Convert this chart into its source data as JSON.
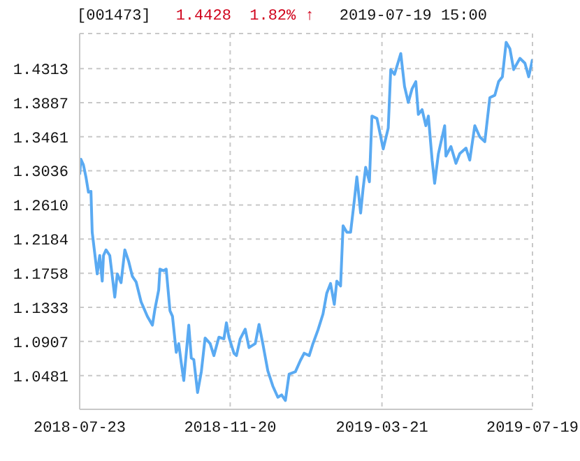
{
  "chart_data": {
    "type": "line",
    "title": "[001473]",
    "subtitle": "1.4428  1.82% ↑",
    "annotations": [
      "2019-07-19 15:00"
    ],
    "x": [
      "2018-07-23",
      "2018-07-24",
      "2018-07-26",
      "2018-07-28",
      "2018-07-30",
      "2018-08-01",
      "2018-08-02",
      "2018-08-06",
      "2018-08-08",
      "2018-08-10",
      "2018-08-11",
      "2018-08-13",
      "2018-08-16",
      "2018-08-20",
      "2018-08-22",
      "2018-08-25",
      "2018-08-28",
      "2018-08-31",
      "2018-09-03",
      "2018-09-06",
      "2018-09-10",
      "2018-09-15",
      "2018-09-19",
      "2018-09-21",
      "2018-09-24",
      "2018-09-25",
      "2018-09-28",
      "2018-09-30",
      "2018-10-03",
      "2018-10-05",
      "2018-10-08",
      "2018-10-10",
      "2018-10-12",
      "2018-10-14",
      "2018-10-18",
      "2018-10-20",
      "2018-10-22",
      "2018-10-25",
      "2018-10-28",
      "2018-10-31",
      "2018-11-04",
      "2018-11-07",
      "2018-11-11",
      "2018-11-15",
      "2018-11-17",
      "2018-11-19",
      "2018-11-23",
      "2018-11-25",
      "2018-11-28",
      "2018-12-02",
      "2018-12-05",
      "2018-12-10",
      "2018-12-13",
      "2018-12-16",
      "2018-12-20",
      "2018-12-24",
      "2018-12-28",
      "2018-12-31",
      "2019-01-03",
      "2019-01-06",
      "2019-01-11",
      "2019-01-15",
      "2019-01-18",
      "2019-01-22",
      "2019-01-25",
      "2019-01-29",
      "2019-02-02",
      "2019-02-05",
      "2019-02-08",
      "2019-02-11",
      "2019-02-13",
      "2019-02-16",
      "2019-02-18",
      "2019-02-21",
      "2019-02-24",
      "2019-02-27",
      "2019-03-01",
      "2019-03-04",
      "2019-03-06",
      "2019-03-08",
      "2019-03-11",
      "2019-03-13",
      "2019-03-17",
      "2019-03-22",
      "2019-03-26",
      "2019-03-28",
      "2019-03-31",
      "2019-04-05",
      "2019-04-08",
      "2019-04-11",
      "2019-04-14",
      "2019-04-17",
      "2019-04-19",
      "2019-04-22",
      "2019-04-25",
      "2019-04-27",
      "2019-04-30",
      "2019-05-02",
      "2019-05-05",
      "2019-05-10",
      "2019-05-11",
      "2019-05-15",
      "2019-05-19",
      "2019-05-22",
      "2019-05-27",
      "2019-05-30",
      "2019-06-03",
      "2019-06-07",
      "2019-06-11",
      "2019-06-15",
      "2019-06-19",
      "2019-06-22",
      "2019-06-25",
      "2019-06-28",
      "2019-07-01",
      "2019-07-04",
      "2019-07-09",
      "2019-07-13",
      "2019-07-16",
      "2019-07-19"
    ],
    "series": [
      {
        "color": "#5aaaf2",
        "values": [
          1.299,
          1.318,
          1.311,
          1.296,
          1.277,
          1.278,
          1.227,
          1.175,
          1.198,
          1.166,
          1.198,
          1.205,
          1.198,
          1.146,
          1.175,
          1.164,
          1.205,
          1.191,
          1.172,
          1.165,
          1.14,
          1.122,
          1.111,
          1.131,
          1.155,
          1.181,
          1.179,
          1.181,
          1.129,
          1.122,
          1.077,
          1.088,
          1.064,
          1.042,
          1.111,
          1.07,
          1.068,
          1.027,
          1.053,
          1.095,
          1.088,
          1.073,
          1.096,
          1.094,
          1.114,
          1.096,
          1.076,
          1.073,
          1.094,
          1.106,
          1.083,
          1.088,
          1.112,
          1.088,
          1.054,
          1.035,
          1.021,
          1.024,
          1.017,
          1.05,
          1.053,
          1.067,
          1.076,
          1.073,
          1.088,
          1.105,
          1.125,
          1.151,
          1.163,
          1.137,
          1.166,
          1.16,
          1.235,
          1.227,
          1.227,
          1.267,
          1.296,
          1.251,
          1.282,
          1.308,
          1.29,
          1.372,
          1.369,
          1.331,
          1.357,
          1.43,
          1.424,
          1.45,
          1.409,
          1.389,
          1.406,
          1.415,
          1.374,
          1.38,
          1.36,
          1.372,
          1.317,
          1.288,
          1.325,
          1.36,
          1.322,
          1.334,
          1.313,
          1.325,
          1.332,
          1.317,
          1.36,
          1.346,
          1.34,
          1.395,
          1.398,
          1.415,
          1.421,
          1.464,
          1.456,
          1.43,
          1.444,
          1.438,
          1.421,
          1.4428
        ]
      }
    ],
    "xlim": [
      "2018-07-23",
      "2019-07-19"
    ],
    "xticks": [
      "2018-07-23",
      "2018-11-20",
      "2019-03-21",
      "2019-07-19"
    ],
    "ylim": [
      1.006,
      1.475
    ],
    "yticks": [
      1.0481,
      1.0907,
      1.1333,
      1.1758,
      1.2184,
      {
        "value": 1.261,
        "label": "1.2610"
      },
      1.3036,
      1.3461,
      1.3887,
      1.4313
    ],
    "grid": true,
    "legend": false,
    "marker": "none",
    "line_style": "solid"
  }
}
